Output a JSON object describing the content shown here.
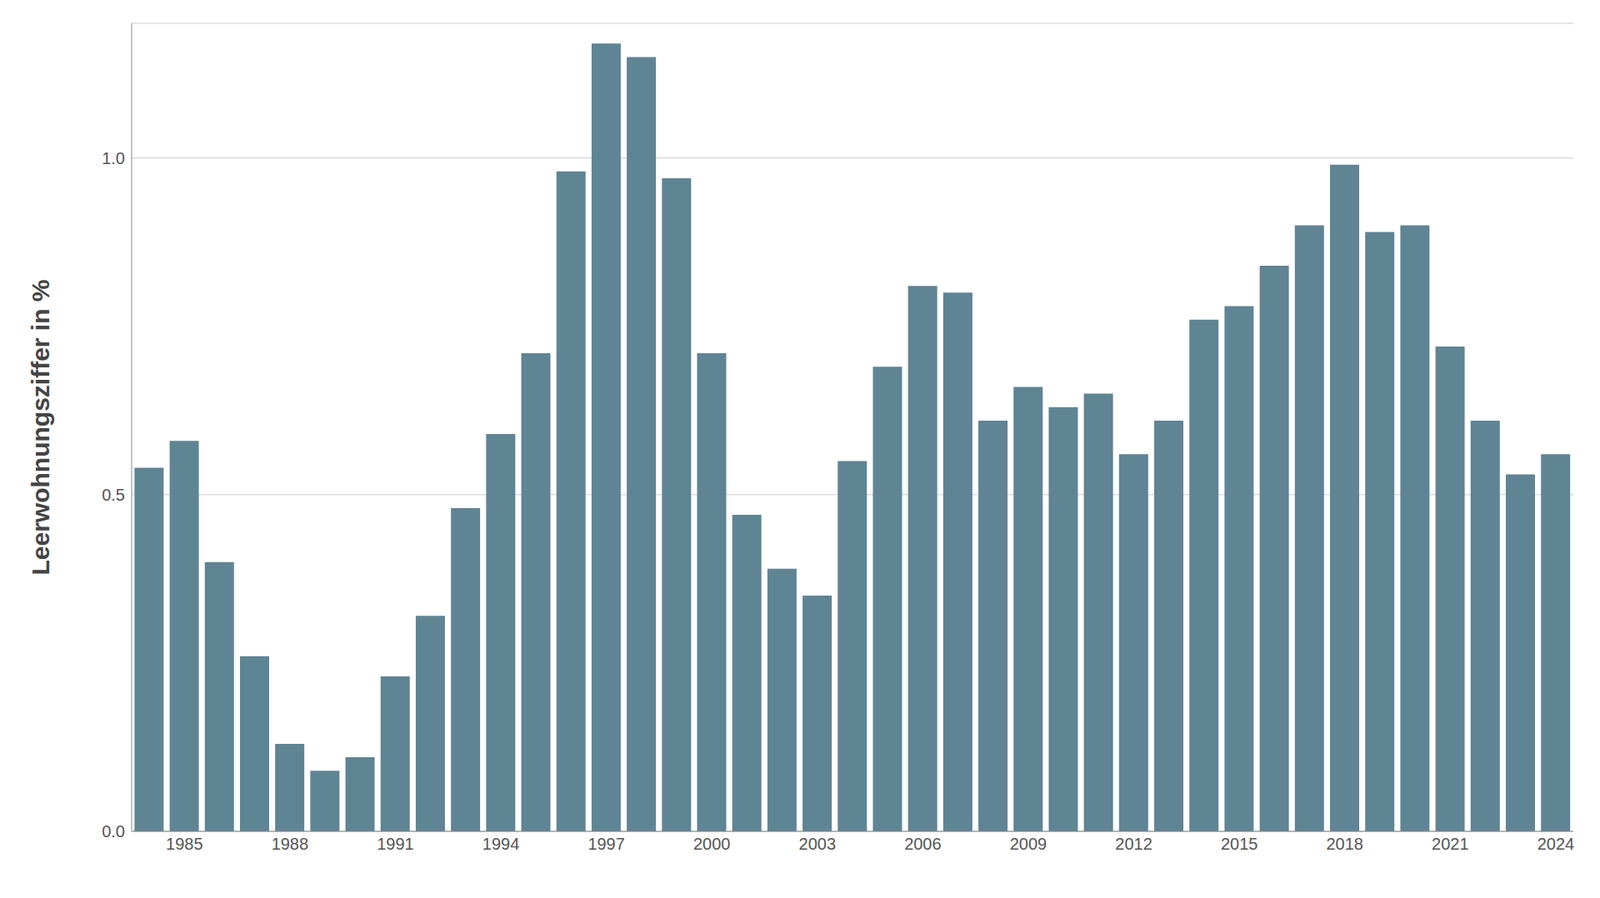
{
  "chart_data": {
    "type": "bar",
    "y_label": "Leerwohnungsziffer in %",
    "categories": [
      null,
      "1985",
      null,
      null,
      "1988",
      null,
      null,
      "1991",
      null,
      null,
      "1994",
      null,
      null,
      "1997",
      null,
      null,
      "2000",
      null,
      null,
      "2003",
      null,
      null,
      "2006",
      null,
      null,
      "2009",
      null,
      null,
      "2012",
      null,
      null,
      "2015",
      null,
      null,
      "2018",
      null,
      null,
      "2021",
      null,
      null,
      "2024"
    ],
    "values": [
      0.54,
      0.58,
      0.4,
      0.26,
      0.13,
      0.09,
      0.11,
      0.23,
      0.32,
      0.48,
      0.59,
      0.71,
      0.98,
      1.17,
      1.15,
      0.97,
      0.71,
      0.47,
      0.39,
      0.35,
      0.55,
      0.69,
      0.81,
      0.8,
      0.61,
      0.66,
      0.63,
      0.65,
      0.56,
      0.61,
      0.76,
      0.78,
      0.84,
      0.9,
      0.99,
      0.89,
      0.9,
      0.72,
      0.61,
      0.53,
      0.56
    ],
    "color": "#5f8494",
    "ylim": [
      0,
      1.2
    ],
    "yticks": [
      {
        "value": 0,
        "label": "0.0"
      },
      {
        "value": 0.5,
        "label": "0.5"
      },
      {
        "value": 1,
        "label": "1.0"
      }
    ],
    "grid": true
  }
}
